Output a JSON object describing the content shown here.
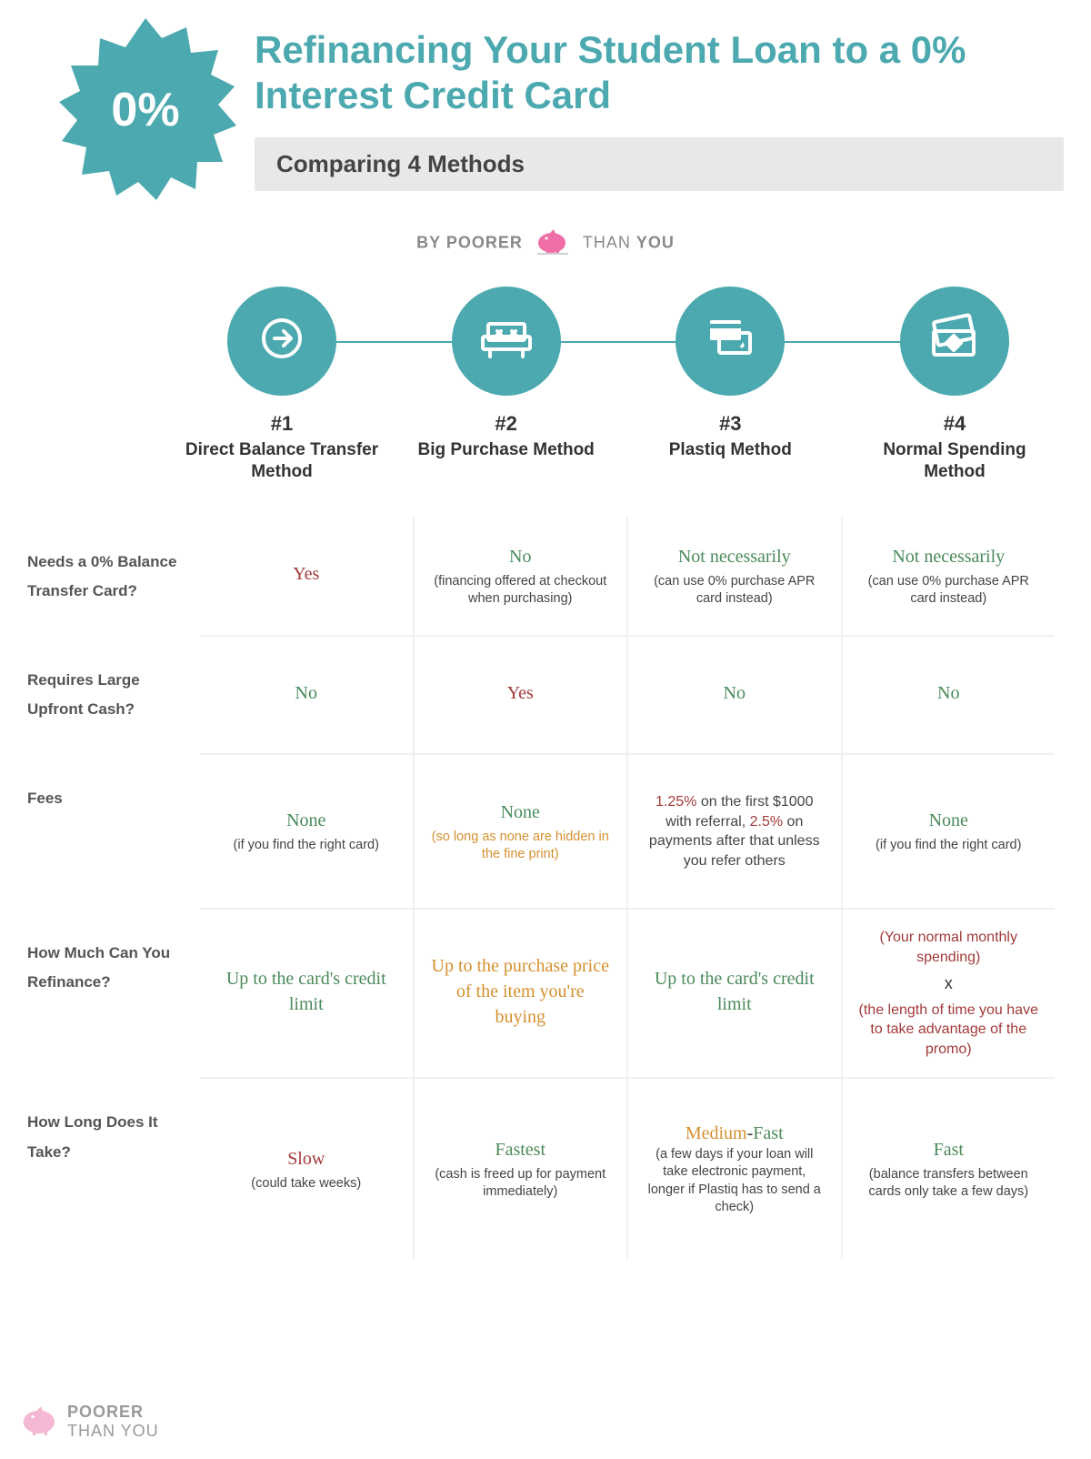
{
  "colors": {
    "teal": "#4ba9af",
    "light_gray": "#e8e8e8",
    "red": "#a23a3a",
    "green": "#4a8a5a",
    "orange": "#d4902f",
    "pink": "#ef6ea8",
    "background": "#ffffff"
  },
  "header": {
    "starburst_text": "0%",
    "title": "Refinancing Your Student Loan to a 0% Interest Credit Card",
    "subtitle": "Comparing 4 Methods",
    "byline_prefix": "BY",
    "byline_brand_1": "POORER",
    "byline_brand_2": "THAN",
    "byline_brand_3": "YOU"
  },
  "methods": [
    {
      "num": "#1",
      "name": "Direct Balance Transfer Method",
      "icon": "arrow"
    },
    {
      "num": "#2",
      "name": "Big Purchase Method",
      "icon": "couch"
    },
    {
      "num": "#3",
      "name": "Plastiq Method",
      "icon": "cards"
    },
    {
      "num": "#4",
      "name": "Normal Spending Method",
      "icon": "bill"
    }
  ],
  "rows": [
    {
      "label": "Needs a 0% Balance Transfer Card?",
      "cells": [
        {
          "main": "Yes",
          "main_color": "red",
          "sub": ""
        },
        {
          "main": "No",
          "main_color": "green",
          "sub": "(financing offered at checkout when purchasing)"
        },
        {
          "main": "Not necessarily",
          "main_color": "green",
          "sub": "(can use 0% purchase APR card instead)"
        },
        {
          "main": "Not necessarily",
          "main_color": "green",
          "sub": "(can use 0% purchase APR card instead)"
        }
      ]
    },
    {
      "label": "Requires Large Upfront Cash?",
      "cells": [
        {
          "main": "No",
          "main_color": "green",
          "sub": ""
        },
        {
          "main": "Yes",
          "main_color": "red",
          "sub": ""
        },
        {
          "main": "No",
          "main_color": "green",
          "sub": ""
        },
        {
          "main": "No",
          "main_color": "green",
          "sub": ""
        }
      ]
    },
    {
      "label": "Fees",
      "cells": [
        {
          "main": "None",
          "main_color": "green",
          "sub": "(if you find the right card)"
        },
        {
          "main": "None",
          "main_color": "green",
          "sub": "(so long as none are hidden in the fine print)",
          "sub_color": "orange"
        },
        {
          "main": "",
          "main_html": "<span class='c-red'>1.25%</span> on the first $1000 with referral, <span class='c-red'>2.5%</span> on payments after that unless you refer others"
        },
        {
          "main": "None",
          "main_color": "green",
          "sub": "(if you find the right card)"
        }
      ]
    },
    {
      "label": "How Much Can You Refinance?",
      "cells": [
        {
          "main": "Up to the card's credit limit",
          "main_color": "green"
        },
        {
          "main": "Up to the purchase price of the item you're buying",
          "main_color": "orange"
        },
        {
          "main": "Up to the card's credit limit",
          "main_color": "green"
        },
        {
          "main": "",
          "main_html": "<span class='c-red'>(Your normal monthly spending)</span><br><span class='c-dark' style='font-size:18px;display:inline-block;margin:6px 0;'>x</span><br><span class='c-red'>(the length of time you have to take advantage of the promo)</span>"
        }
      ]
    },
    {
      "label": "How Long Does It Take?",
      "cells": [
        {
          "main": "Slow",
          "main_color": "red",
          "sub": "(could take weeks)"
        },
        {
          "main": "Fastest",
          "main_color": "green",
          "sub": "(cash is freed up for payment immediately)"
        },
        {
          "main": "",
          "main_html": "<span class='val-main'><span class='c-orange'>Medium</span><span class='c-dark'>-</span><span class='c-green'>Fast</span></span>",
          "sub": "(a few days if your loan will take electronic payment, longer if Plastiq has to send a check)"
        },
        {
          "main": "Fast",
          "main_color": "green",
          "sub": "(balance transfers between cards only take a few days)"
        }
      ]
    }
  ],
  "footer": {
    "brand_1": "POORER",
    "brand_2": "THAN YOU"
  }
}
